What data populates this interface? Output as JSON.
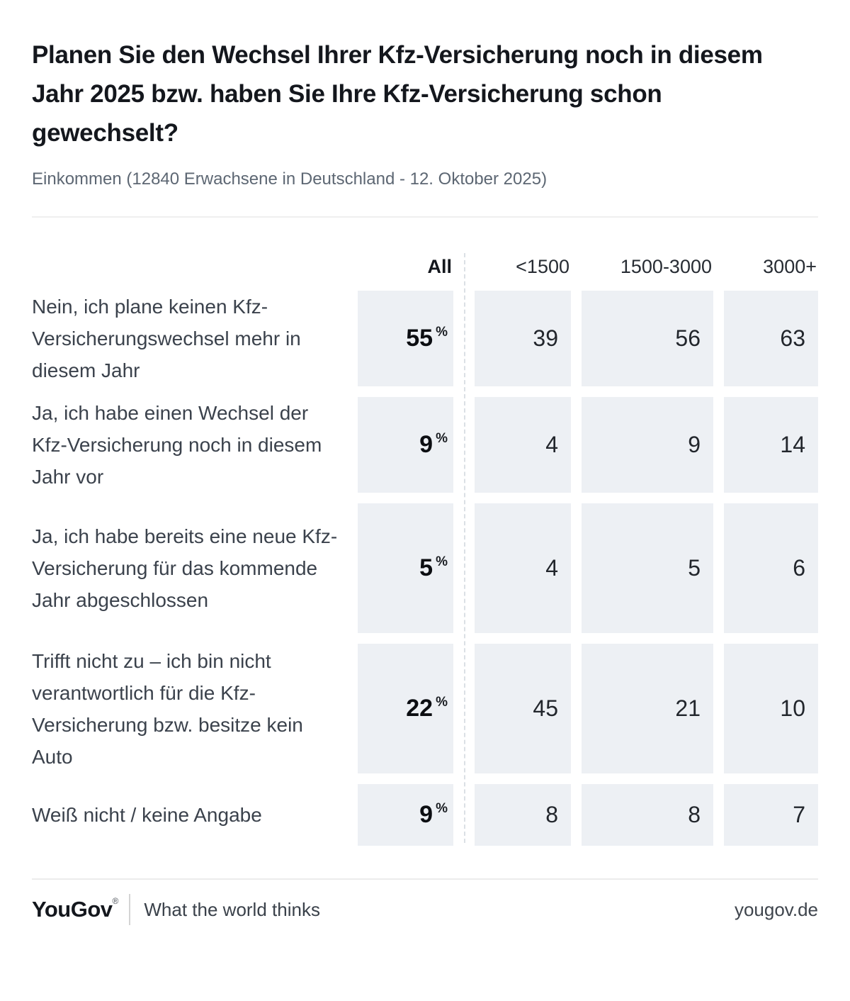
{
  "header": {
    "title": "Planen Sie den Wechsel Ihrer Kfz-Versicherung noch in diesem Jahr 2025 bzw. haben Sie Ihre Kfz-Versicherung schon gewechselt?",
    "subtitle": "Einkommen (12840 Erwachsene in Deutschland - 12. Oktober 2025)"
  },
  "table": {
    "columns": [
      "All",
      "<1500",
      "1500-3000",
      "3000+"
    ],
    "rows": [
      {
        "label": "Nein, ich plane keinen Kfz-Versicherungswechsel mehr in diesem Jahr",
        "all": "55",
        "pct": "%",
        "values": [
          "39",
          "56",
          "63"
        ]
      },
      {
        "label": "Ja, ich habe einen Wechsel der Kfz-Versicherung noch in diesem Jahr vor",
        "all": "9",
        "pct": "%",
        "values": [
          "4",
          "9",
          "14"
        ]
      },
      {
        "label": "Ja, ich habe bereits eine neue Kfz-Versicherung für das kommende Jahr abgeschlossen",
        "all": "5",
        "pct": "%",
        "values": [
          "4",
          "5",
          "6"
        ]
      },
      {
        "label": "Trifft nicht zu – ich bin nicht verantwortlich für die Kfz-Versicherung bzw. besitze kein Auto",
        "all": "22",
        "pct": "%",
        "values": [
          "45",
          "21",
          "10"
        ]
      },
      {
        "label": "Weiß nicht / keine Angabe",
        "all": "9",
        "pct": "%",
        "values": [
          "8",
          "8",
          "7"
        ]
      }
    ]
  },
  "chart_data": {
    "type": "table",
    "title": "Planen Sie den Wechsel Ihrer Kfz-Versicherung noch in diesem Jahr 2025 bzw. haben Sie Ihre Kfz-Versicherung schon gewechselt?",
    "subtitle": "Einkommen (12840 Erwachsene in Deutschland - 12. Oktober 2025)",
    "unit": "%",
    "columns": [
      "All",
      "<1500",
      "1500-3000",
      "3000+"
    ],
    "rows": [
      {
        "label": "Nein, ich plane keinen Kfz-Versicherungswechsel mehr in diesem Jahr",
        "values": [
          55,
          39,
          56,
          63
        ]
      },
      {
        "label": "Ja, ich habe einen Wechsel der Kfz-Versicherung noch in diesem Jahr vor",
        "values": [
          9,
          4,
          9,
          14
        ]
      },
      {
        "label": "Ja, ich habe bereits eine neue Kfz-Versicherung für das kommende Jahr abgeschlossen",
        "values": [
          5,
          4,
          5,
          6
        ]
      },
      {
        "label": "Trifft nicht zu – ich bin nicht verantwortlich für die Kfz-Versicherung bzw. besitze kein Auto",
        "values": [
          22,
          45,
          21,
          10
        ]
      },
      {
        "label": "Weiß nicht / keine Angabe",
        "values": [
          9,
          8,
          8,
          7
        ]
      }
    ],
    "layout": {
      "highlight_column": "All",
      "cell_background": "#edf0f4",
      "separator": "dashed-vertical-after-All"
    }
  },
  "footer": {
    "logo": "YouGov",
    "registered": "®",
    "tagline": "What the world thinks",
    "site": "yougov.de"
  },
  "colors": {
    "cell_bg": "#edf0f4",
    "title_text": "#14171d",
    "subtitle_text": "#5d6773",
    "label_text": "#3b424c",
    "number_text": "#22262c"
  }
}
